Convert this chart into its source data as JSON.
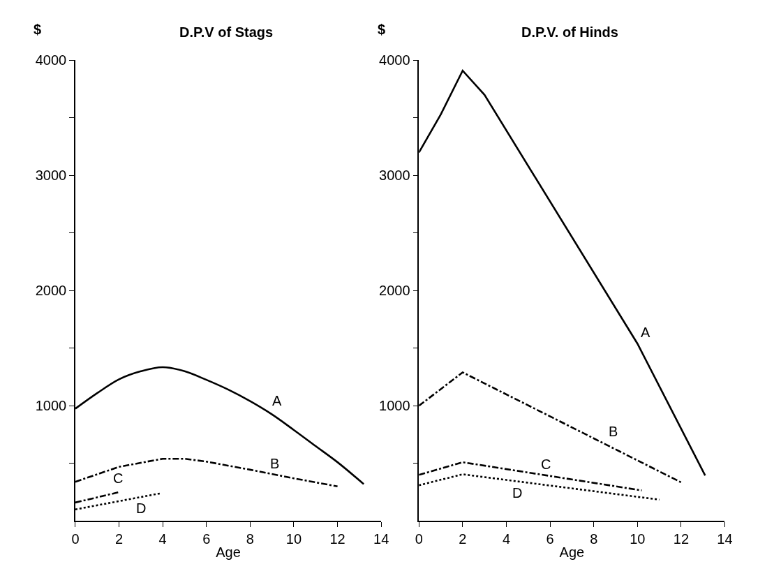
{
  "chart_data": [
    {
      "type": "line",
      "title": "D.P.V of Stags",
      "xlabel": "Age",
      "ylabel": "$",
      "grid": false,
      "legend": false,
      "marker": "none",
      "xlim": [
        0,
        14
      ],
      "xticks": [
        0,
        2,
        4,
        6,
        8,
        10,
        12,
        14
      ],
      "ylim": [
        0,
        4000
      ],
      "yticks": [
        {
          "value": 500,
          "label": null
        },
        1000,
        {
          "value": 1500,
          "label": null
        },
        2000,
        {
          "value": 2500,
          "label": null
        },
        3000,
        {
          "value": 3500,
          "label": null
        },
        4000
      ],
      "series": [
        {
          "name": "A",
          "color": "#000000",
          "line_style": "solid",
          "x": [
            0,
            1,
            2,
            3,
            4,
            5,
            6,
            7,
            8,
            9,
            10,
            11,
            12,
            13.2
          ],
          "values": [
            975,
            1110,
            1230,
            1300,
            1335,
            1300,
            1225,
            1140,
            1040,
            925,
            790,
            650,
            510,
            320
          ]
        },
        {
          "name": "B",
          "color": "#000000",
          "line_style": "dashdot",
          "x": [
            0,
            2,
            4,
            5,
            6,
            8,
            10,
            12
          ],
          "values": [
            340,
            470,
            540,
            540,
            515,
            445,
            370,
            300
          ]
        },
        {
          "name": "C",
          "color": "#000000",
          "line_style": "dashdot",
          "x": [
            0,
            2
          ],
          "values": [
            160,
            250
          ]
        },
        {
          "name": "D",
          "color": "#000000",
          "line_style": "dotted",
          "x": [
            0,
            3.9
          ],
          "values": [
            100,
            240
          ]
        }
      ]
    },
    {
      "type": "line",
      "title": "D.P.V. of Hinds",
      "xlabel": "Age",
      "ylabel": "$",
      "grid": false,
      "legend": false,
      "marker": "none",
      "xlim": [
        0,
        14
      ],
      "xticks": [
        0,
        2,
        4,
        6,
        8,
        10,
        12,
        14
      ],
      "ylim": [
        0,
        4000
      ],
      "yticks": [
        {
          "value": 500,
          "label": null
        },
        1000,
        {
          "value": 1500,
          "label": null
        },
        2000,
        {
          "value": 2500,
          "label": null
        },
        3000,
        {
          "value": 3500,
          "label": null
        },
        4000
      ],
      "series": [
        {
          "name": "A",
          "color": "#000000",
          "line_style": "solid",
          "x": [
            0,
            1,
            2,
            3,
            10,
            13.1
          ],
          "values": [
            3200,
            3530,
            3910,
            3700,
            1540,
            395
          ]
        },
        {
          "name": "B",
          "color": "#000000",
          "line_style": "dashdot",
          "x": [
            0,
            2,
            12
          ],
          "values": [
            1000,
            1290,
            335
          ]
        },
        {
          "name": "C",
          "color": "#000000",
          "line_style": "dashdot",
          "x": [
            0,
            2,
            10.2
          ],
          "values": [
            400,
            510,
            265
          ]
        },
        {
          "name": "D",
          "color": "#000000",
          "line_style": "dotted",
          "x": [
            0,
            2,
            11
          ],
          "values": [
            310,
            405,
            185
          ]
        }
      ]
    }
  ]
}
